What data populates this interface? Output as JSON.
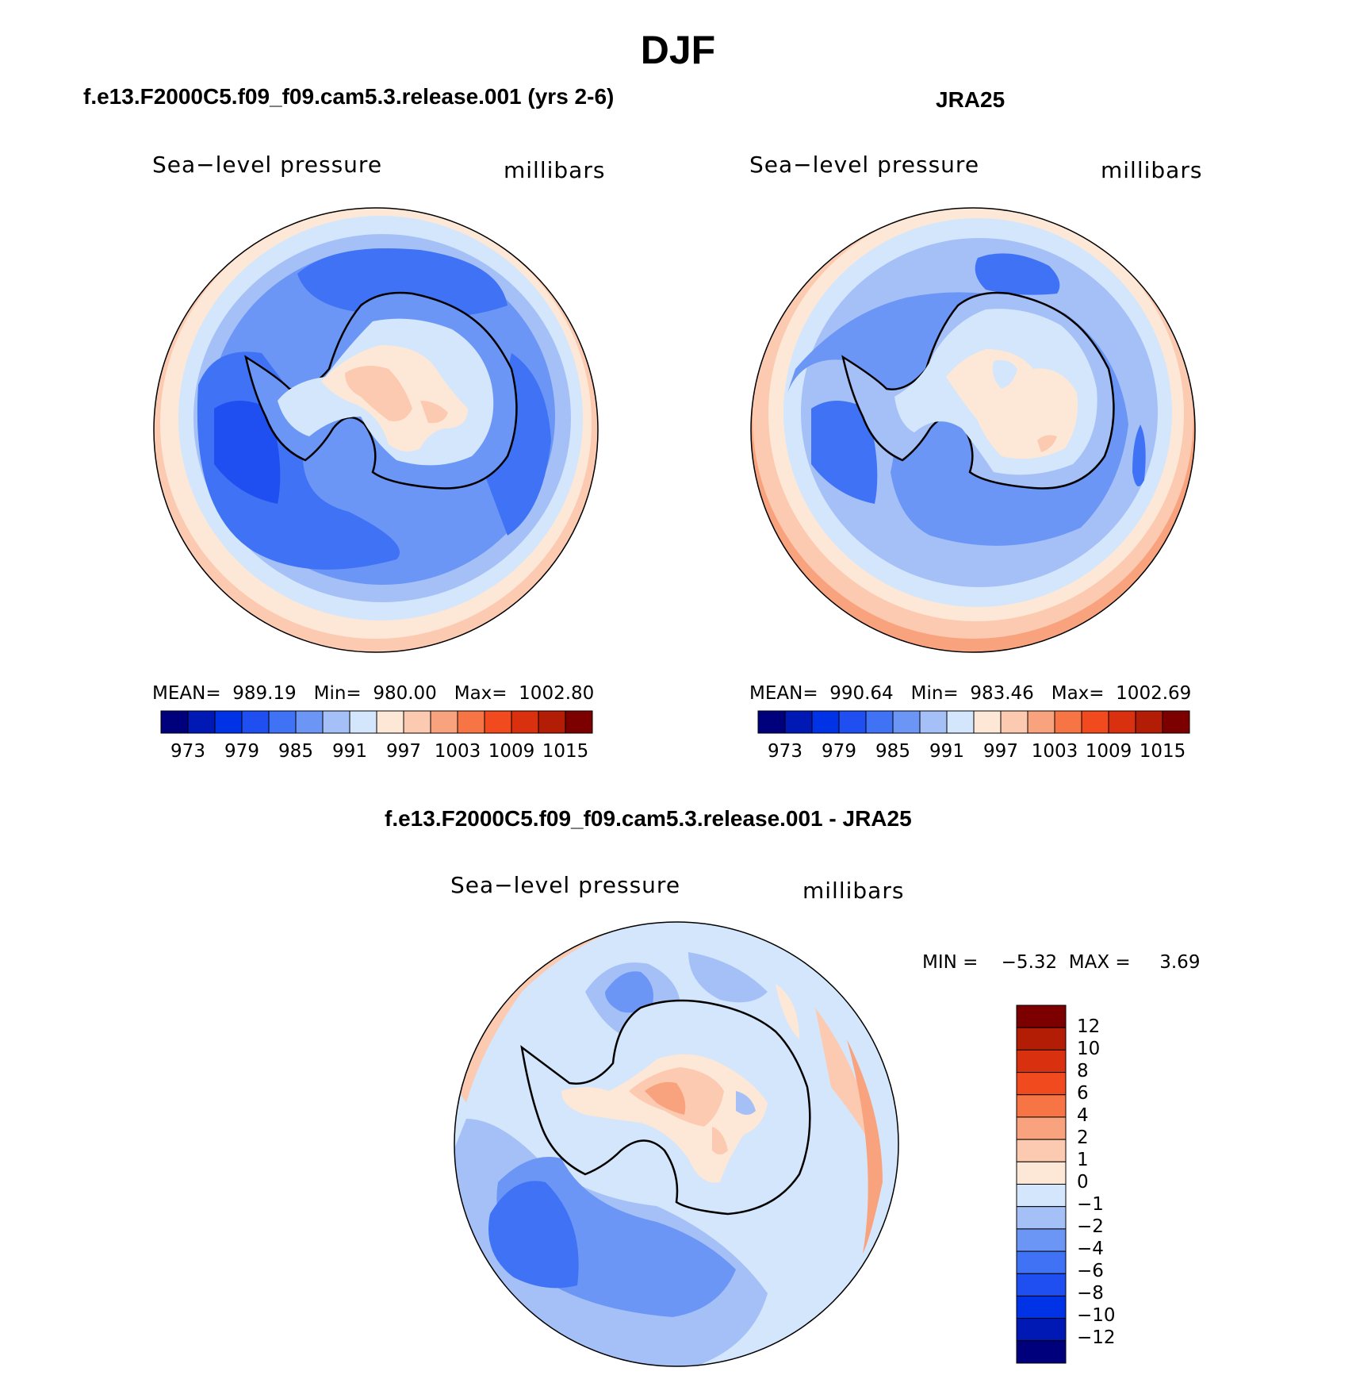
{
  "title": "DJF",
  "panels": {
    "model": {
      "title": "f.e13.F2000C5.f09_f09.cam5.3.release.001 (yrs 2-6)",
      "variable": "Sea−level pressure",
      "units": "millibars",
      "stats": "MEAN=  989.19   Min=  980.00   Max=  1002.80"
    },
    "obs": {
      "title": "JRA25",
      "variable": "Sea−level pressure",
      "units": "millibars",
      "stats": "MEAN=  990.64   Min=  983.46   Max=  1002.69"
    },
    "diff": {
      "title": "f.e13.F2000C5.f09_f09.cam5.3.release.001 - JRA25",
      "variable": "Sea−level pressure",
      "units": "millibars",
      "stats": "MIN =    −5.32  MAX =     3.69"
    }
  },
  "colorbars": {
    "abs": {
      "colors": [
        "#00007d",
        "#0019b5",
        "#0033e6",
        "#1f4ff0",
        "#3f72f5",
        "#6b96f5",
        "#a5c0f7",
        "#d3e6fb",
        "#fde8d8",
        "#fccab0",
        "#f9a27e",
        "#f77444",
        "#f14a1f",
        "#d9310f",
        "#b31d06",
        "#7d0000"
      ],
      "labels": [
        "973",
        "979",
        "985",
        "991",
        "997",
        "1003",
        "1009",
        "1015"
      ]
    },
    "diff": {
      "colors": [
        "#7d0000",
        "#b31d06",
        "#d9310f",
        "#f14a1f",
        "#f77444",
        "#f9a27e",
        "#fccab0",
        "#fde8d8",
        "#d3e6fb",
        "#a5c0f7",
        "#6b96f5",
        "#3f72f5",
        "#1f4ff0",
        "#0033e6",
        "#0019b5",
        "#00007d"
      ],
      "labels": [
        "12",
        "10",
        "8",
        "6",
        "4",
        "2",
        "1",
        "0",
        "−1",
        "−2",
        "−4",
        "−6",
        "−8",
        "−10",
        "−12"
      ]
    }
  }
}
